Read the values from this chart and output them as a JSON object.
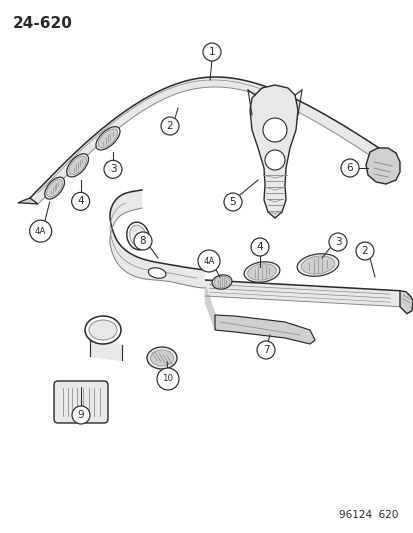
{
  "page_code": "24-620",
  "footer_code": "96124  620",
  "bg": "#ffffff",
  "lc": "#2a2a2a",
  "gc": "#888888",
  "fill_light": "#e8e8e8",
  "fill_mid": "#d0d0d0",
  "fill_dark": "#b0b0b0",
  "figsize": [
    4.14,
    5.33
  ],
  "dpi": 100
}
